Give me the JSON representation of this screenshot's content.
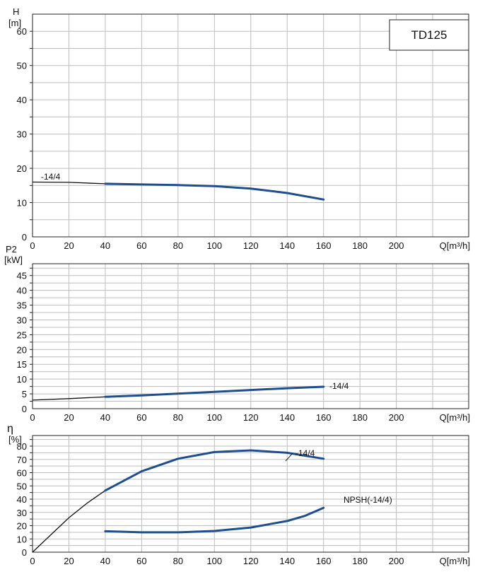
{
  "model_label": "TD125",
  "colors": {
    "main": "#1f4e8c",
    "extrap": "#111111",
    "grid": "#bdbdbd",
    "axis": "#222222"
  },
  "chart_data": [
    {
      "type": "line",
      "ylabel": "H",
      "yunit": "[m]",
      "xlabel": "Q[m³/h]",
      "xticks": [
        "0",
        "20",
        "40",
        "60",
        "80",
        "100",
        "120",
        "140",
        "160",
        "180",
        "200"
      ],
      "yticks": [
        "0",
        "10",
        "20",
        "30",
        "40",
        "50",
        "60"
      ],
      "xlim": [
        0,
        240
      ],
      "ylim": [
        0,
        65
      ],
      "grid": true,
      "series": [
        {
          "name": "-14/4",
          "extrapolated": [
            [
              0,
              16
            ],
            [
              20,
              15.9
            ],
            [
              40,
              15.5
            ]
          ],
          "values": [
            [
              40,
              15.5
            ],
            [
              60,
              15.3
            ],
            [
              80,
              15.1
            ],
            [
              100,
              14.8
            ],
            [
              120,
              14.1
            ],
            [
              140,
              12.8
            ],
            [
              160,
              10.9
            ]
          ]
        }
      ]
    },
    {
      "type": "line",
      "ylabel": "P2",
      "yunit": "[kW]",
      "xlabel": "Q[m³/h]",
      "xticks": [
        "0",
        "20",
        "40",
        "60",
        "80",
        "100",
        "120",
        "140",
        "160",
        "180",
        "200"
      ],
      "yticks": [
        "0",
        "5",
        "10",
        "15",
        "20",
        "25",
        "30",
        "35",
        "40",
        "45"
      ],
      "xlim": [
        0,
        240
      ],
      "ylim": [
        0,
        49
      ],
      "grid": true,
      "series": [
        {
          "name": "-14/4",
          "extrapolated": [
            [
              0,
              2.9
            ],
            [
              20,
              3.4
            ],
            [
              40,
              4.0
            ]
          ],
          "values": [
            [
              40,
              4.0
            ],
            [
              60,
              4.5
            ],
            [
              80,
              5.1
            ],
            [
              100,
              5.7
            ],
            [
              120,
              6.3
            ],
            [
              140,
              6.9
            ],
            [
              160,
              7.4
            ]
          ]
        }
      ]
    },
    {
      "type": "line",
      "ylabel": "η",
      "yunit": "[%]",
      "xlabel": "Q[m³/h]",
      "xticks": [
        "0",
        "20",
        "40",
        "60",
        "80",
        "100",
        "120",
        "140",
        "160",
        "180",
        "200"
      ],
      "yticks": [
        "0",
        "10",
        "20",
        "30",
        "40",
        "50",
        "60",
        "70",
        "80"
      ],
      "xlim": [
        0,
        240
      ],
      "ylim": [
        0,
        88
      ],
      "grid": true,
      "series": [
        {
          "name": "-14/4",
          "extrapolated": [
            [
              0,
              0
            ],
            [
              10,
              13
            ],
            [
              20,
              26
            ],
            [
              30,
              37
            ],
            [
              40,
              46.5
            ]
          ],
          "values": [
            [
              40,
              46.5
            ],
            [
              60,
              61
            ],
            [
              80,
              70.5
            ],
            [
              100,
              75.5
            ],
            [
              120,
              76.8
            ],
            [
              140,
              75
            ],
            [
              160,
              70.5
            ]
          ]
        },
        {
          "name": "NPSH(-14/4)",
          "values": [
            [
              40,
              15.8
            ],
            [
              60,
              15
            ],
            [
              80,
              15
            ],
            [
              100,
              16
            ],
            [
              120,
              18.6
            ],
            [
              140,
              23.5
            ],
            [
              150,
              27.5
            ],
            [
              160,
              33.5
            ]
          ]
        }
      ]
    }
  ]
}
